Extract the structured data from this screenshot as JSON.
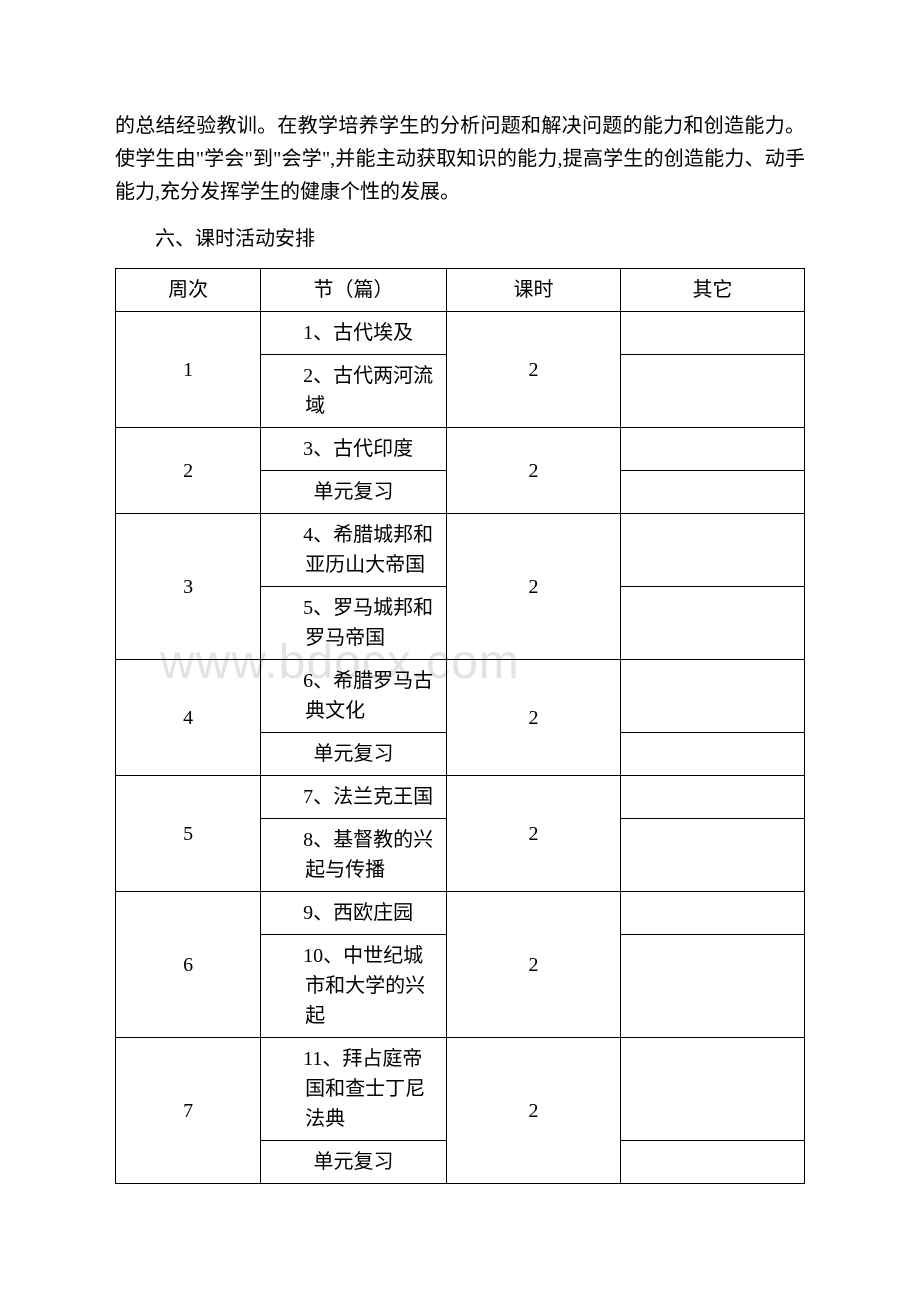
{
  "intro_text": "的总结经验教训。在教学培养学生的分析问题和解决问题的能力和创造能力。使学生由\"学会\"到\"会学\",并能主动获取知识的能力,提高学生的创造能力、动手能力,充分发挥学生的健康个性的发展。",
  "section_title": "六、课时活动安排",
  "watermark_text": "www.bdocx.com",
  "headers": {
    "week": "周次",
    "chapter": "节（篇）",
    "hours": "课时",
    "other": "其它"
  },
  "rows": [
    {
      "week": "1",
      "hours": "2",
      "chapters": [
        "1、古代埃及",
        "2、古代两河流域"
      ]
    },
    {
      "week": "2",
      "hours": "2",
      "chapters": [
        "3、古代印度",
        "单元复习"
      ]
    },
    {
      "week": "3",
      "hours": "2",
      "chapters": [
        "4、希腊城邦和亚历山大帝国",
        "5、罗马城邦和罗马帝国"
      ]
    },
    {
      "week": "4",
      "hours": "2",
      "chapters": [
        "6、希腊罗马古典文化",
        "单元复习"
      ]
    },
    {
      "week": "5",
      "hours": "2",
      "chapters": [
        "7、法兰克王国",
        "8、基督教的兴起与传播"
      ]
    },
    {
      "week": "6",
      "hours": "2",
      "chapters": [
        "9、西欧庄园",
        "10、中世纪城市和大学的兴起"
      ]
    },
    {
      "week": "7",
      "hours": "2",
      "chapters": [
        "11、拜占庭帝国和查士丁尼法典",
        "单元复习"
      ]
    }
  ],
  "style": {
    "text_color": "#000000",
    "background_color": "#ffffff",
    "watermark_color": "#e3e3e3",
    "border_color": "#000000",
    "body_fontsize": 20,
    "watermark_fontsize": 48
  }
}
